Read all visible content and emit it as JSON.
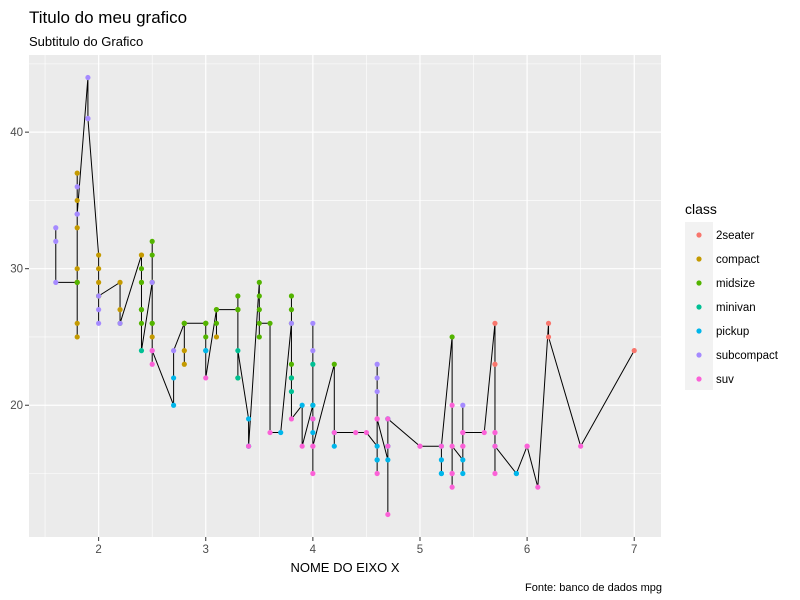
{
  "chart_data": {
    "type": "scatter",
    "title": "Titulo do meu grafico",
    "subtitle": "Subtitulo do Grafico",
    "xlabel": "NOME DO EIXO X",
    "ylabel": "",
    "caption": "Fonte: banco de dados mpg",
    "xlim": [
      1.35,
      7.25
    ],
    "ylim": [
      10.35,
      45.65
    ],
    "xticks": [
      2,
      3,
      4,
      5,
      6,
      7
    ],
    "yticks": [
      20,
      30,
      40
    ],
    "grid": true,
    "legend_title": "class",
    "legend_position": "right",
    "line_color": "#000000",
    "series": [
      {
        "name": "2seater",
        "color": "#F8766D",
        "points": [
          [
            5.7,
            26
          ],
          [
            5.7,
            23
          ],
          [
            6.2,
            26
          ],
          [
            6.2,
            25
          ],
          [
            7,
            24
          ]
        ]
      },
      {
        "name": "compact",
        "color": "#C49A00",
        "points": [
          [
            1.8,
            29
          ],
          [
            1.8,
            29
          ],
          [
            2,
            31
          ],
          [
            2,
            30
          ],
          [
            2.8,
            26
          ],
          [
            2.8,
            26
          ],
          [
            3.1,
            27
          ],
          [
            1.8,
            26
          ],
          [
            1.8,
            25
          ],
          [
            2,
            28
          ],
          [
            2,
            29
          ],
          [
            2.8,
            23
          ],
          [
            3.1,
            25
          ],
          [
            2.2,
            29
          ],
          [
            2.2,
            27
          ],
          [
            2.4,
            31
          ],
          [
            2.4,
            31
          ],
          [
            3,
            26
          ],
          [
            1.8,
            35
          ],
          [
            1.8,
            37
          ],
          [
            1.8,
            33
          ],
          [
            2.5,
            29
          ],
          [
            2.5,
            25
          ],
          [
            2.8,
            24
          ],
          [
            3.3,
            27
          ],
          [
            1.8,
            30
          ],
          [
            2.4,
            29
          ]
        ]
      },
      {
        "name": "midsize",
        "color": "#53B400",
        "points": [
          [
            2.4,
            27
          ],
          [
            2.4,
            30
          ],
          [
            3.1,
            26
          ],
          [
            3.5,
            29
          ],
          [
            3.6,
            26
          ],
          [
            2.5,
            29
          ],
          [
            2.5,
            32
          ],
          [
            2.5,
            31
          ],
          [
            3.3,
            28
          ],
          [
            3,
            26
          ],
          [
            3,
            26
          ],
          [
            3.3,
            27
          ],
          [
            3.8,
            26
          ],
          [
            3.8,
            28
          ],
          [
            3.8,
            27
          ],
          [
            5.3,
            25
          ],
          [
            2.4,
            26
          ],
          [
            2.4,
            27
          ],
          [
            2.8,
            26
          ],
          [
            3.5,
            28
          ],
          [
            3.5,
            27
          ],
          [
            4.2,
            23
          ],
          [
            3.8,
            22
          ],
          [
            3.8,
            23
          ],
          [
            3.8,
            22
          ],
          [
            4,
            20
          ],
          [
            3.1,
            27
          ],
          [
            3.5,
            25
          ],
          [
            2.2,
            26
          ],
          [
            2.4,
            29
          ],
          [
            3,
            25
          ],
          [
            3.3,
            27
          ],
          [
            2,
            28
          ],
          [
            2.5,
            26
          ],
          [
            3,
            26
          ],
          [
            3.3,
            22
          ],
          [
            2.8,
            26
          ],
          [
            3.5,
            26
          ],
          [
            1.8,
            29
          ],
          [
            2.5,
            26
          ]
        ]
      },
      {
        "name": "minivan",
        "color": "#00C094",
        "points": [
          [
            2.4,
            24
          ],
          [
            3,
            24
          ],
          [
            3.3,
            22
          ],
          [
            3.3,
            24
          ],
          [
            3.8,
            21
          ],
          [
            3.8,
            22
          ],
          [
            4,
            23
          ]
        ]
      },
      {
        "name": "pickup",
        "color": "#00B6EB",
        "points": [
          [
            3.7,
            18
          ],
          [
            4.7,
            16
          ],
          [
            4.7,
            17
          ],
          [
            5.2,
            17
          ],
          [
            5.7,
            17
          ],
          [
            5.9,
            15
          ],
          [
            4.7,
            19
          ],
          [
            5.2,
            15
          ],
          [
            3.9,
            20
          ],
          [
            4.7,
            19
          ],
          [
            4.7,
            17
          ],
          [
            5.2,
            16
          ],
          [
            5.2,
            15
          ],
          [
            5.9,
            15
          ],
          [
            3.4,
            19
          ],
          [
            3.4,
            17
          ],
          [
            4,
            20
          ],
          [
            4.6,
            17
          ],
          [
            5.4,
            16
          ],
          [
            5.4,
            15
          ],
          [
            2.7,
            20
          ],
          [
            2.7,
            22
          ],
          [
            4,
            19
          ],
          [
            4,
            18
          ],
          [
            4.6,
            16
          ],
          [
            4.2,
            17
          ],
          [
            3,
            24
          ],
          [
            3.4,
            17
          ],
          [
            4.2,
            18
          ],
          [
            4.6,
            16
          ]
        ]
      },
      {
        "name": "subcompact",
        "color": "#A58AFF",
        "points": [
          [
            1.6,
            33
          ],
          [
            1.6,
            32
          ],
          [
            1.6,
            29
          ],
          [
            1.8,
            34
          ],
          [
            1.8,
            36
          ],
          [
            1.9,
            44
          ],
          [
            1.9,
            41
          ],
          [
            2,
            26
          ],
          [
            2,
            27
          ],
          [
            2.7,
            24
          ],
          [
            1.8,
            34
          ],
          [
            2.2,
            26
          ],
          [
            2.5,
            29
          ],
          [
            3.8,
            26
          ],
          [
            4,
            26
          ],
          [
            4,
            24
          ],
          [
            4.6,
            23
          ],
          [
            4.6,
            22
          ],
          [
            4.6,
            21
          ],
          [
            5.4,
            20
          ],
          [
            2.5,
            24
          ],
          [
            1.9,
            41
          ],
          [
            2,
            28
          ]
        ]
      },
      {
        "name": "suv",
        "color": "#FB61D7",
        "points": [
          [
            5.3,
            20
          ],
          [
            5.3,
            15
          ],
          [
            5.7,
            18
          ],
          [
            6,
            17
          ],
          [
            5.3,
            14
          ],
          [
            6.1,
            14
          ],
          [
            5.3,
            15
          ],
          [
            5.7,
            18
          ],
          [
            5.4,
            17
          ],
          [
            5.4,
            18
          ],
          [
            4.7,
            17
          ],
          [
            4.7,
            12
          ],
          [
            3.8,
            19
          ],
          [
            4.5,
            18
          ],
          [
            4.6,
            19
          ],
          [
            4.2,
            18
          ],
          [
            4.4,
            18
          ],
          [
            3.6,
            18
          ],
          [
            4,
            17
          ],
          [
            4,
            19
          ],
          [
            4,
            15
          ],
          [
            5.7,
            15
          ],
          [
            5.4,
            17
          ],
          [
            6.5,
            17
          ],
          [
            4.7,
            19
          ],
          [
            5.3,
            17
          ],
          [
            5.6,
            18
          ],
          [
            4.6,
            15
          ],
          [
            3,
            22
          ],
          [
            3.9,
            17
          ],
          [
            4.6,
            19
          ],
          [
            5,
            17
          ],
          [
            5.4,
            18
          ],
          [
            2.5,
            23
          ],
          [
            4,
            17
          ],
          [
            5,
            17
          ],
          [
            5.7,
            17
          ],
          [
            6,
            17
          ],
          [
            5.2,
            17
          ],
          [
            2.5,
            24
          ],
          [
            3.4,
            17
          ]
        ]
      }
    ]
  }
}
